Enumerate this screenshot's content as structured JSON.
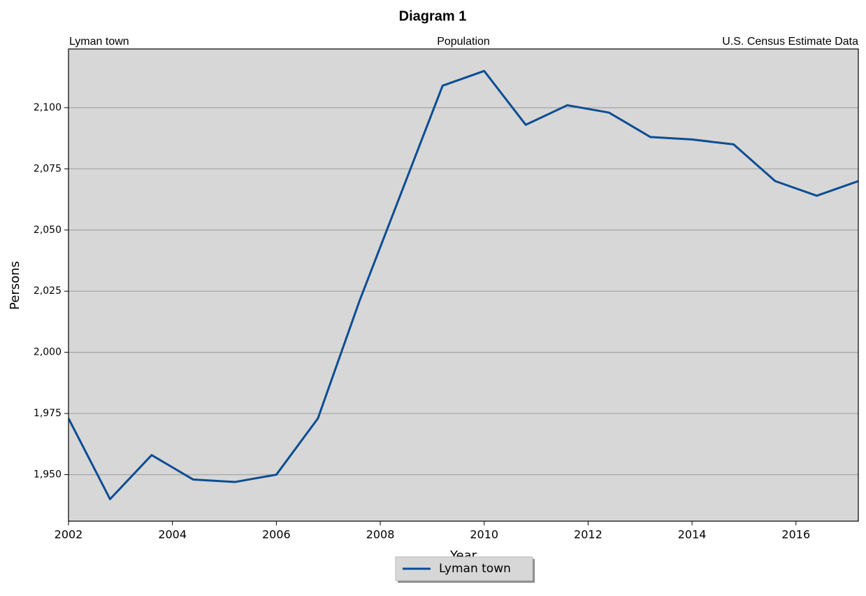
{
  "chart_data": {
    "type": "line",
    "title": "Diagram 1",
    "subtitle_left": "Lyman town",
    "subtitle_center": "Population",
    "subtitle_right": "U.S. Census Estimate Data",
    "x_label": "Year",
    "y_label": "Persons",
    "x": [
      2002,
      2002.8,
      2003.6,
      2004.4,
      2005.2,
      2006,
      2006.8,
      2007.6,
      2008.4,
      2009.2,
      2010,
      2010.8,
      2011.6,
      2012.4,
      2013.2,
      2014,
      2014.8,
      2015.6,
      2016.4,
      2017.2
    ],
    "series": [
      {
        "name": "Lyman town",
        "color": "#0b4d93",
        "values": [
          1973,
          1940,
          1958,
          1948,
          1947,
          1950,
          1973,
          2021,
          2065,
          2109,
          2115,
          2093,
          2101,
          2098,
          2088,
          2087,
          2085,
          2070,
          2064,
          2070
        ]
      }
    ],
    "xlim": [
      2002,
      2017.2
    ],
    "xticks": [
      2002,
      2004,
      2006,
      2008,
      2010,
      2012,
      2014,
      2016
    ],
    "ylim": [
      1931,
      2124
    ],
    "yticks": [
      {
        "value": 1950,
        "label": "1,950"
      },
      {
        "value": 1975,
        "label": "1,975"
      },
      {
        "value": 2000,
        "label": "2,000"
      },
      {
        "value": 2025,
        "label": "2,025"
      },
      {
        "value": 2050,
        "label": "2,050"
      },
      {
        "value": 2075,
        "label": "2,075"
      },
      {
        "value": 2100,
        "label": "2,100"
      }
    ],
    "grid": "y",
    "legend": "bottom"
  }
}
